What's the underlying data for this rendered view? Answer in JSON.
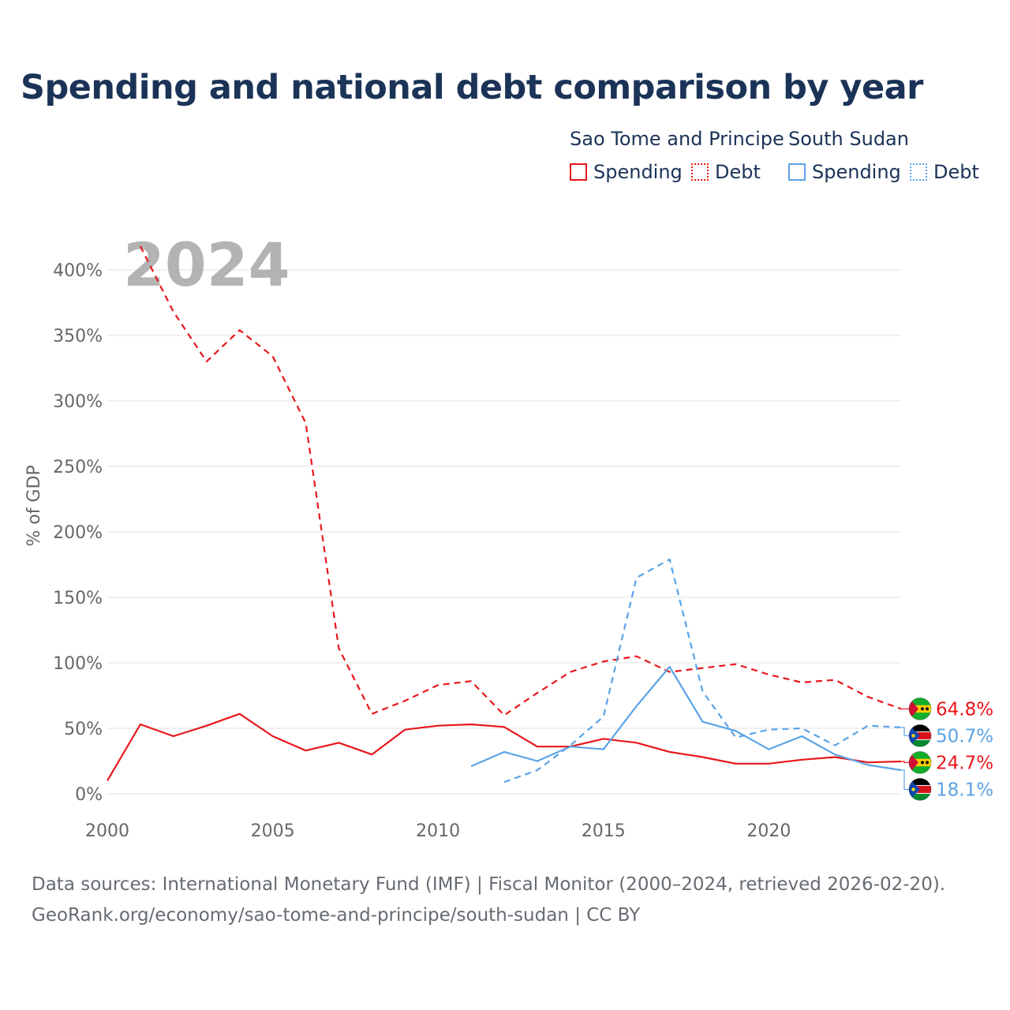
{
  "title": "Spending and national debt comparison by year",
  "legend": {
    "groups": [
      {
        "country": "Sao Tome and Principe",
        "color": "#e8171b",
        "items": [
          {
            "label": "Spending",
            "style": "solid"
          },
          {
            "label": "Debt",
            "style": "dotted"
          }
        ]
      },
      {
        "country": "South Sudan",
        "color": "#5ba3e6",
        "items": [
          {
            "label": "Spending",
            "style": "solid"
          },
          {
            "label": "Debt",
            "style": "dotted"
          }
        ]
      }
    ]
  },
  "footer": {
    "line1": "Data sources: International Monetary Fund (IMF) | Fiscal Monitor (2000–2024, retrieved 2026-02-20).",
    "line2": "GeoRank.org/economy/sao-tome-and-principe/south-sudan | CC BY"
  },
  "chart_data": {
    "type": "line",
    "title": "Spending and national debt comparison by year",
    "year_watermark": "2024",
    "xlabel": "",
    "ylabel": "% of GDP",
    "xlim": [
      2000,
      2024
    ],
    "ylim": [
      0,
      400
    ],
    "x_ticks": [
      2000,
      2005,
      2010,
      2015,
      2020
    ],
    "y_ticks": [
      0,
      50,
      100,
      150,
      200,
      250,
      300,
      350,
      400
    ],
    "y_tick_labels": [
      "0%",
      "50%",
      "100%",
      "150%",
      "200%",
      "250%",
      "300%",
      "350%",
      "400%"
    ],
    "grid": true,
    "series": [
      {
        "name": "Sao Tome and Principe Debt",
        "color": "#e8171b",
        "dash": true,
        "x": [
          2001,
          2002,
          2003,
          2004,
          2005,
          2006,
          2007,
          2008,
          2009,
          2010,
          2011,
          2012,
          2013,
          2014,
          2015,
          2016,
          2017,
          2018,
          2019,
          2020,
          2021,
          2022,
          2023,
          2024
        ],
        "values": [
          418,
          368,
          330,
          354,
          334,
          283,
          111,
          61,
          71,
          83,
          86,
          60,
          77,
          93,
          101,
          105,
          93,
          96,
          99,
          91,
          85,
          87,
          74,
          64.8
        ],
        "end_label": "64.8%",
        "flag": "sao-tome-flag"
      },
      {
        "name": "South Sudan Debt",
        "color": "#5ba3e6",
        "dash": true,
        "x": [
          2012,
          2013,
          2014,
          2015,
          2016,
          2017,
          2018,
          2019,
          2020,
          2021,
          2022,
          2023,
          2024
        ],
        "values": [
          9,
          18,
          37,
          59,
          165,
          179,
          78,
          43,
          49,
          50,
          37,
          52,
          50.7
        ],
        "end_label": "50.7%",
        "flag": "south-sudan-flag"
      },
      {
        "name": "Sao Tome and Principe Spending",
        "color": "#e8171b",
        "dash": false,
        "x": [
          2000,
          2001,
          2002,
          2003,
          2004,
          2005,
          2006,
          2007,
          2008,
          2009,
          2010,
          2011,
          2012,
          2013,
          2014,
          2015,
          2016,
          2017,
          2018,
          2019,
          2020,
          2021,
          2022,
          2023,
          2024
        ],
        "values": [
          10,
          53,
          44,
          52,
          61,
          44,
          33,
          39,
          30,
          49,
          52,
          53,
          51,
          36,
          36,
          42,
          39,
          32,
          28,
          23,
          23,
          26,
          28,
          24,
          24.7
        ],
        "end_label": "24.7%",
        "flag": "sao-tome-flag"
      },
      {
        "name": "South Sudan Spending",
        "color": "#5ba3e6",
        "dash": false,
        "x": [
          2011,
          2012,
          2013,
          2014,
          2015,
          2016,
          2017,
          2018,
          2019,
          2020,
          2021,
          2022,
          2023,
          2024
        ],
        "values": [
          21,
          32,
          25,
          36,
          34,
          67,
          97,
          55,
          48,
          34,
          44,
          30,
          22,
          18.1
        ],
        "end_label": "18.1%",
        "flag": "south-sudan-flag"
      }
    ]
  }
}
